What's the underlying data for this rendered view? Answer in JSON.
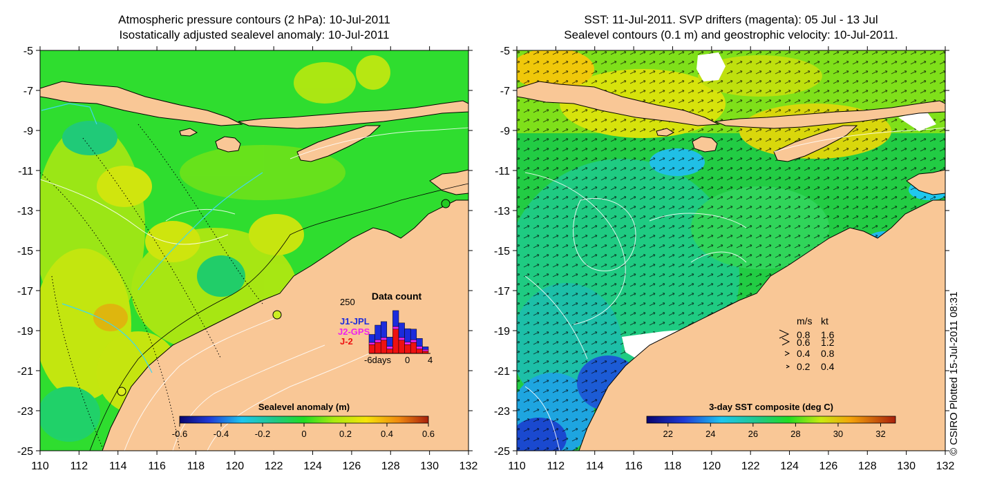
{
  "left_panel": {
    "title_line1": "Atmospheric pressure contours (2 hPa): 10-Jul-2011",
    "title_line2": "Isostatically adjusted sealevel anomaly: 10-Jul-2011",
    "colorbar": {
      "title": "Sealevel anomaly (m)",
      "ticks": [
        "-0.6",
        "-0.4",
        "-0.2",
        "0",
        "0.2",
        "0.4",
        "0.6"
      ]
    },
    "data_count": {
      "title": "Data count",
      "ymax_label": "250",
      "series": [
        "J1-JPL",
        "J2-GPS",
        "J-2"
      ],
      "x_labels": [
        "-6days",
        "0",
        "4"
      ],
      "colors": {
        "J1-JPL": "#1b2bdc",
        "J2-GPS": "#ee22ee",
        "J-2": "#ee1111"
      }
    }
  },
  "right_panel": {
    "title_line1": "SST: 11-Jul-2011. SVP drifters (magenta): 05 Jul - 13 Jul",
    "title_line2": "Sealevel contours (0.1 m) and geostrophic velocity: 10-Jul-2011.",
    "colorbar": {
      "title": "3-day SST composite (deg C)",
      "ticks": [
        "22",
        "24",
        "26",
        "28",
        "30",
        "32"
      ]
    },
    "velocity_legend": {
      "header_ms": "m/s",
      "header_kt": "kt",
      "rows": [
        {
          "ms": "0.8",
          "kt": "1.6"
        },
        {
          "ms": "0.6",
          "kt": "1.2"
        },
        {
          "ms": "0.4",
          "kt": "0.8"
        },
        {
          "ms": "0.2",
          "kt": "0.4"
        }
      ]
    }
  },
  "axes": {
    "y_ticks": [
      "-5",
      "-7",
      "-9",
      "-11",
      "-13",
      "-15",
      "-17",
      "-19",
      "-21",
      "-23",
      "-25"
    ],
    "x_ticks": [
      "110",
      "112",
      "114",
      "116",
      "118",
      "120",
      "122",
      "124",
      "126",
      "128",
      "130",
      "132"
    ]
  },
  "credit": "© CSIRO Plotted 15-Jul-2011 08:31",
  "colors": {
    "land": "#f9c796",
    "sea_green": "#2fdd2f",
    "coast": "#000000"
  }
}
